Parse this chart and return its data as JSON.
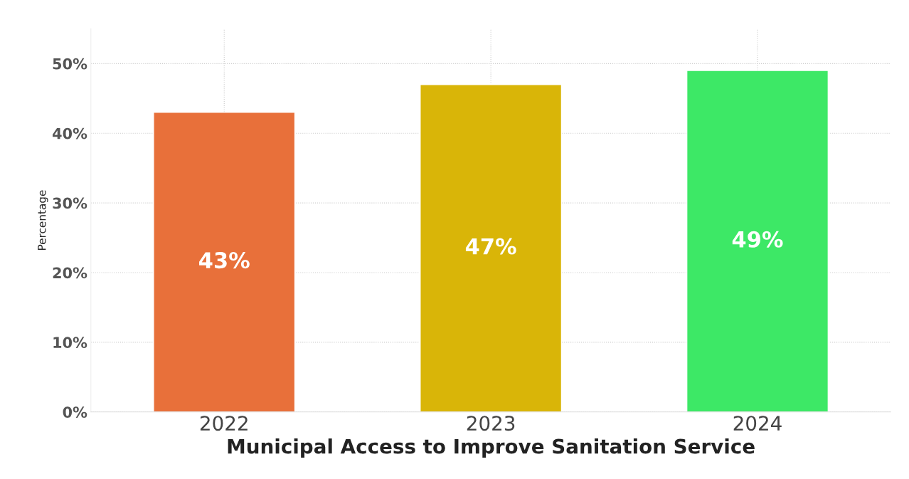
{
  "chart_data": {
    "type": "bar",
    "xlabel": "Municipal Access to Improve Sanitation Service",
    "ylabel": "Percentage",
    "categories": [
      "2022",
      "2023",
      "2024"
    ],
    "values": [
      43,
      47,
      49
    ],
    "colors": [
      "#e8703a",
      "#d9b508",
      "#3de866"
    ],
    "value_labels": [
      "43%",
      "47%",
      "49%"
    ],
    "ylim": [
      0,
      55
    ],
    "yticks": [
      {
        "value": 0,
        "label": "0%"
      },
      {
        "value": 10,
        "label": "10%"
      },
      {
        "value": 20,
        "label": "20%"
      },
      {
        "value": 30,
        "label": "30%"
      },
      {
        "value": 40,
        "label": "40%"
      },
      {
        "value": 50,
        "label": "50%"
      }
    ],
    "grid": true
  }
}
